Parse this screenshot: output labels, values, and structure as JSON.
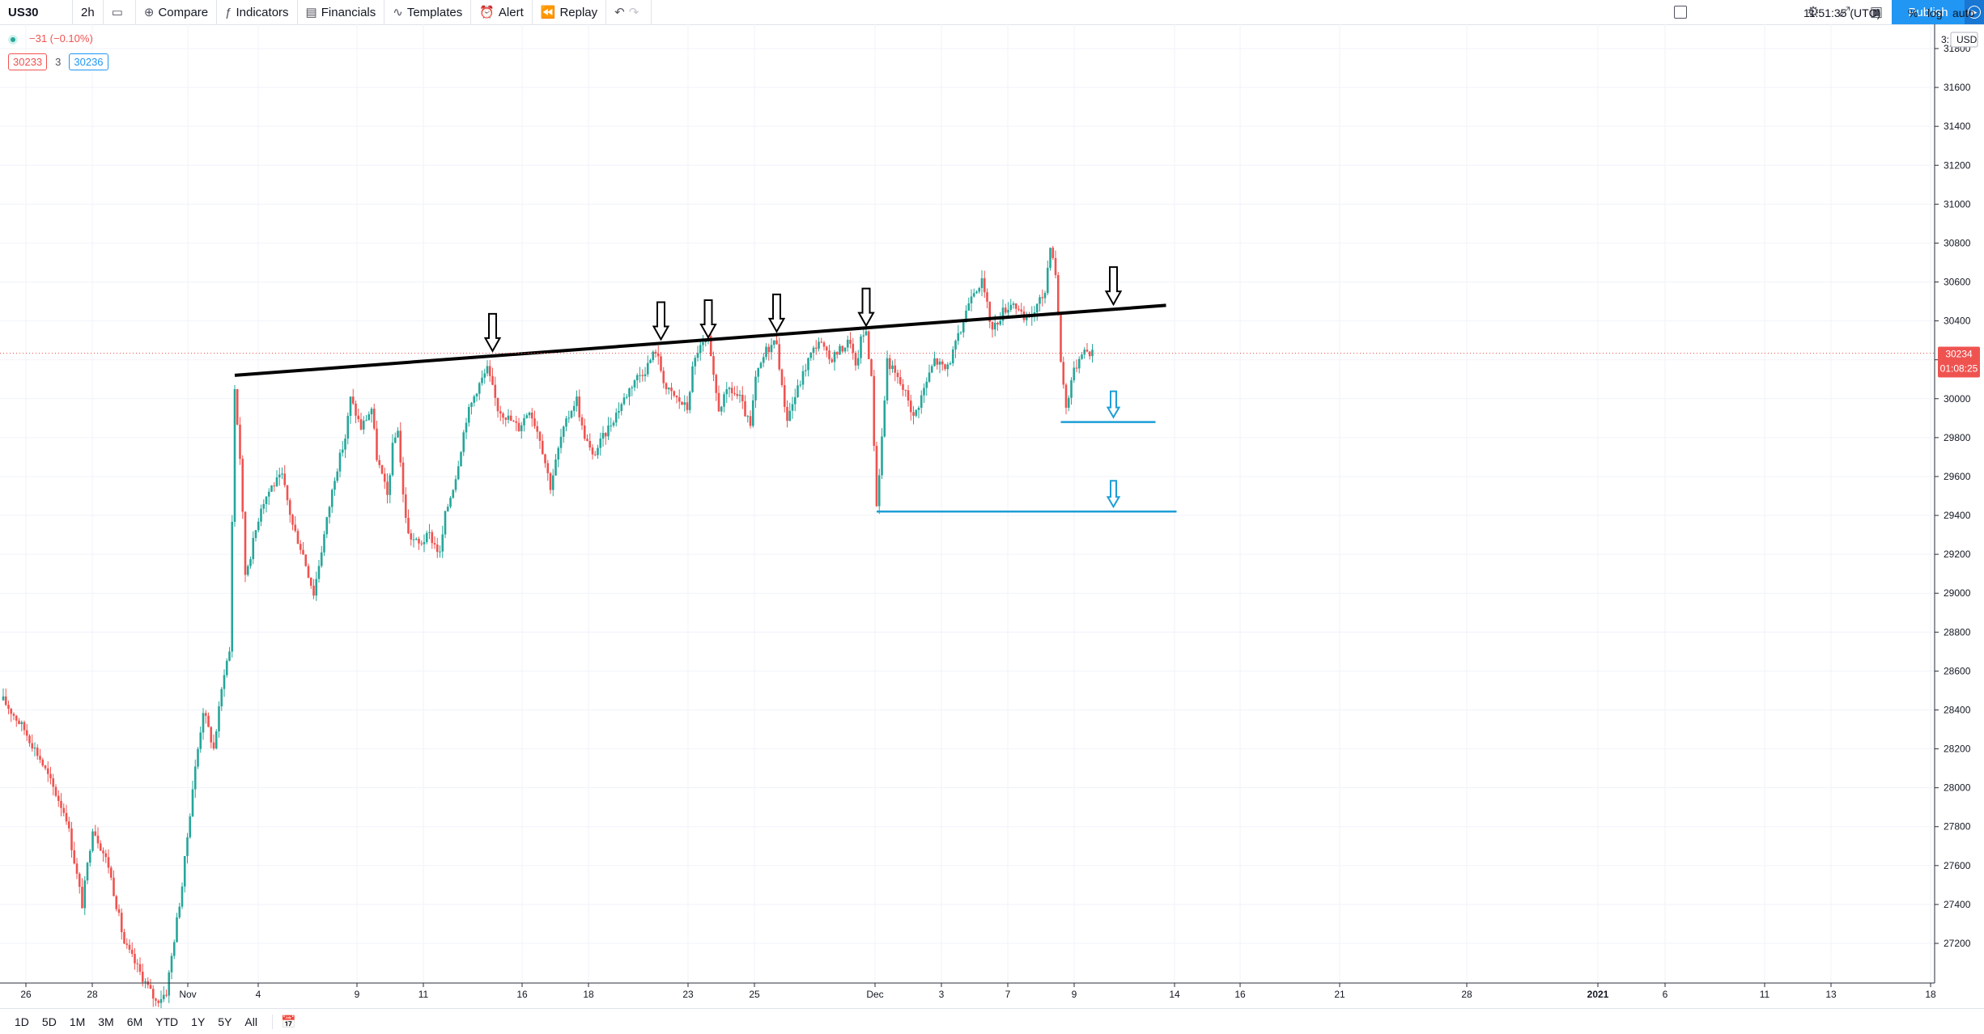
{
  "toolbar": {
    "symbol": "US30",
    "interval": "2h",
    "compare": "Compare",
    "indicators": "Indicators",
    "financials": "Financials",
    "templates": "Templates",
    "alert": "Alert",
    "replay": "Replay",
    "publish": "Publish"
  },
  "legend": {
    "change": "−31 (−0.10%)",
    "bid": "30233",
    "spread": "3",
    "ask": "30236"
  },
  "bottom": {
    "ranges": [
      "1D",
      "5D",
      "1M",
      "3M",
      "6M",
      "YTD",
      "1Y",
      "5Y",
      "All"
    ],
    "clock": "11:51:35 (UTC)",
    "pct": "%",
    "log": "log",
    "auto": "auto"
  },
  "colors": {
    "up": "#26a69a",
    "down": "#ef5350",
    "support_line": "#1e9ed6",
    "resistance_line": "#000000",
    "accent": "#2196f3"
  },
  "chart_data": {
    "type": "candlestick",
    "currency": "USD",
    "price_axis_top_label": "3:",
    "y_ticks": [
      27200,
      27400,
      27600,
      27800,
      28000,
      28200,
      28400,
      28600,
      28800,
      29000,
      29200,
      29400,
      29600,
      29800,
      30000,
      30200,
      30400,
      30600,
      30800,
      31000,
      31200,
      31400,
      31600,
      31800
    ],
    "x_tick_labels": [
      "26",
      "28",
      "Nov",
      "4",
      "9",
      "11",
      "16",
      "18",
      "23",
      "25",
      "Dec",
      "3",
      "7",
      "9",
      "14",
      "16",
      "21",
      "28",
      "2021",
      "6",
      "11",
      "13",
      "18"
    ],
    "ylim": [
      27080,
      32010
    ],
    "grid": true,
    "last_price": "30234",
    "countdown": "01:08:25",
    "price_path": [
      [
        0,
        28450
      ],
      [
        4,
        28300
      ],
      [
        7,
        28150
      ],
      [
        12,
        27850
      ],
      [
        15,
        27400
      ],
      [
        17,
        27800
      ],
      [
        20,
        27600
      ],
      [
        23,
        27200
      ],
      [
        26,
        27050
      ],
      [
        28,
        26950
      ],
      [
        29,
        26900
      ],
      [
        31,
        26950
      ],
      [
        34,
        27500
      ],
      [
        36,
        28000
      ],
      [
        38,
        28400
      ],
      [
        40,
        28200
      ],
      [
        42,
        28600
      ],
      [
        43,
        28700
      ],
      [
        44,
        30050
      ],
      [
        45,
        29700
      ],
      [
        46,
        29100
      ],
      [
        47,
        29200
      ],
      [
        49,
        29450
      ],
      [
        51,
        29550
      ],
      [
        53,
        29600
      ],
      [
        55,
        29350
      ],
      [
        57,
        29200
      ],
      [
        59,
        29000
      ],
      [
        61,
        29300
      ],
      [
        63,
        29600
      ],
      [
        65,
        29800
      ],
      [
        66,
        30000
      ],
      [
        68,
        29850
      ],
      [
        70,
        29950
      ],
      [
        71,
        29700
      ],
      [
        73,
        29500
      ],
      [
        74,
        29750
      ],
      [
        75,
        29850
      ],
      [
        76,
        29500
      ],
      [
        77,
        29300
      ],
      [
        79,
        29250
      ],
      [
        81,
        29300
      ],
      [
        83,
        29200
      ],
      [
        84,
        29400
      ],
      [
        86,
        29600
      ],
      [
        88,
        29900
      ],
      [
        90,
        30050
      ],
      [
        92,
        30150
      ],
      [
        94,
        29950
      ],
      [
        96,
        29900
      ],
      [
        98,
        29850
      ],
      [
        100,
        29950
      ],
      [
        102,
        29800
      ],
      [
        104,
        29550
      ],
      [
        106,
        29800
      ],
      [
        108,
        29950
      ],
      [
        109,
        30000
      ],
      [
        110,
        29850
      ],
      [
        112,
        29700
      ],
      [
        114,
        29800
      ],
      [
        116,
        29900
      ],
      [
        118,
        30000
      ],
      [
        120,
        30100
      ],
      [
        122,
        30150
      ],
      [
        124,
        30250
      ],
      [
        126,
        30050
      ],
      [
        128,
        30000
      ],
      [
        130,
        29950
      ],
      [
        131,
        30150
      ],
      [
        132,
        30250
      ],
      [
        134,
        30300
      ],
      [
        135,
        30100
      ],
      [
        136,
        29950
      ],
      [
        138,
        30050
      ],
      [
        140,
        30000
      ],
      [
        142,
        29850
      ],
      [
        143,
        30100
      ],
      [
        145,
        30250
      ],
      [
        147,
        30300
      ],
      [
        148,
        30050
      ],
      [
        149,
        29900
      ],
      [
        151,
        30050
      ],
      [
        153,
        30200
      ],
      [
        155,
        30300
      ],
      [
        157,
        30200
      ],
      [
        159,
        30250
      ],
      [
        161,
        30300
      ],
      [
        162,
        30150
      ],
      [
        163,
        30300
      ],
      [
        164,
        30350
      ],
      [
        165,
        30100
      ],
      [
        166,
        29450
      ],
      [
        167,
        29800
      ],
      [
        168,
        30200
      ],
      [
        170,
        30100
      ],
      [
        172,
        30000
      ],
      [
        173,
        29900
      ],
      [
        175,
        30050
      ],
      [
        177,
        30200
      ],
      [
        179,
        30150
      ],
      [
        180,
        30200
      ],
      [
        182,
        30350
      ],
      [
        184,
        30550
      ],
      [
        186,
        30600
      ],
      [
        188,
        30350
      ],
      [
        190,
        30450
      ],
      [
        192,
        30500
      ],
      [
        194,
        30400
      ],
      [
        196,
        30450
      ],
      [
        198,
        30550
      ],
      [
        199,
        30800
      ],
      [
        200,
        30650
      ],
      [
        201,
        30200
      ],
      [
        202,
        29950
      ],
      [
        203,
        30100
      ],
      [
        205,
        30250
      ],
      [
        207,
        30234
      ]
    ],
    "price_path_note": "x in trading-bar index; y in price",
    "drawings": [
      {
        "type": "trend_line",
        "color": "black",
        "from": [
          44,
          30120
        ],
        "to": [
          221,
          30480
        ]
      },
      {
        "type": "horizontal_ray",
        "color": "blue",
        "from_x": 201,
        "to_x": 219,
        "price": 29880
      },
      {
        "type": "horizontal_ray",
        "color": "blue",
        "from_x": 166,
        "to_x": 223,
        "price": 29420
      }
    ],
    "arrows": [
      {
        "color": "black",
        "x": 93,
        "price": 30220
      },
      {
        "color": "black",
        "x": 125,
        "price": 30280
      },
      {
        "color": "black",
        "x": 134,
        "price": 30290
      },
      {
        "color": "black",
        "x": 147,
        "price": 30320
      },
      {
        "color": "black",
        "x": 164,
        "price": 30350
      },
      {
        "color": "black",
        "x": 211,
        "price": 30460
      },
      {
        "color": "blue",
        "x": 211,
        "price": 29880
      },
      {
        "color": "blue",
        "x": 211,
        "price": 29420
      }
    ]
  }
}
